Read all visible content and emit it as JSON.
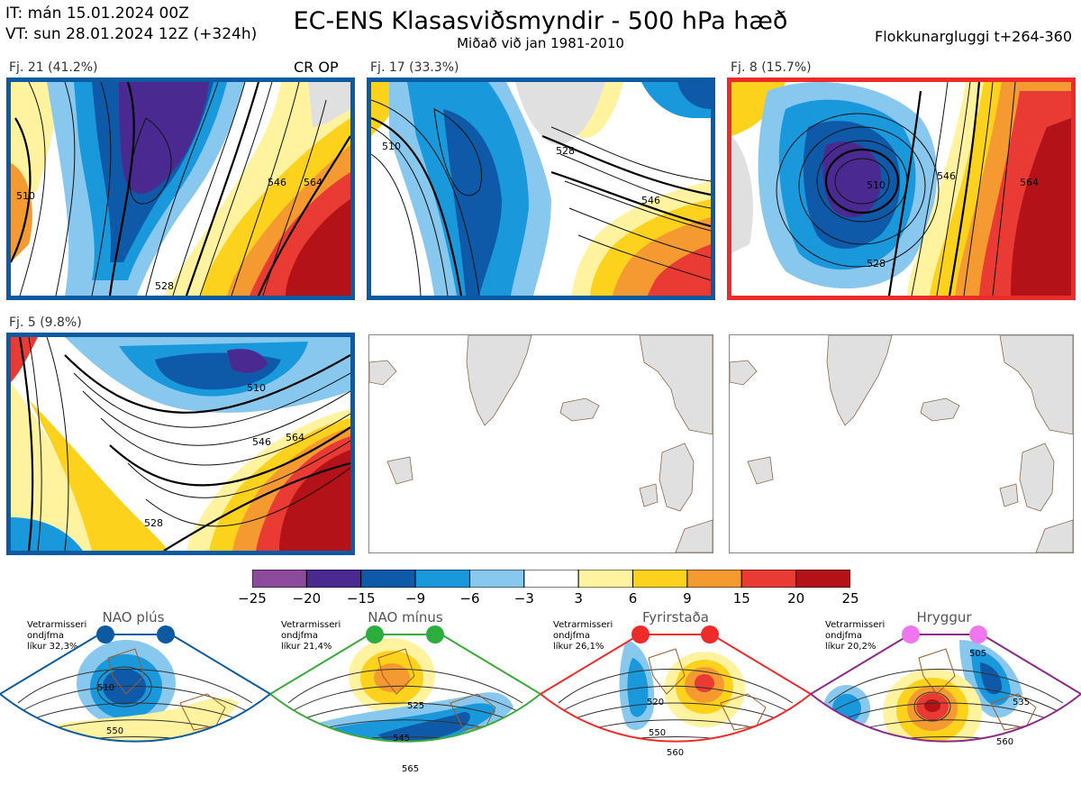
{
  "header": {
    "line1": "IT: mán 15.01.2024 00Z",
    "line2": "VT: sun 28.01.2024 12Z  (+324h)",
    "title": "EC-ENS Klasasviðsmyndir - 500 hPa hæð",
    "subtitle": "Miðað við jan 1981-2010",
    "right": "Flokkunargluggi t+264-360"
  },
  "panels": [
    {
      "label": "Fj. 21 (41.2%)",
      "tag": "CR OP",
      "border": "#0b5aa2",
      "contours": [
        "510",
        "528",
        "546",
        "564"
      ]
    },
    {
      "label": "Fj. 17 (33.3%)",
      "tag": "",
      "border": "#0b5aa2",
      "contours": [
        "510",
        "528",
        "546"
      ]
    },
    {
      "label": "Fj. 8 (15.7%)",
      "tag": "",
      "border": "#ee2b2b",
      "contours": [
        "510",
        "528",
        "546",
        "564"
      ]
    },
    {
      "label": "Fj. 5 (9.8%)",
      "tag": "",
      "border": "#0b5aa2",
      "contours": [
        "510",
        "528",
        "546",
        "564"
      ]
    }
  ],
  "colorbar": {
    "colors": [
      "#8b4a9c",
      "#4a2a90",
      "#0f5aa8",
      "#1a98dc",
      "#88c8ee",
      "#ffffff",
      "#fff3a0",
      "#fdd21c",
      "#f49a30",
      "#ea3a34",
      "#b31218"
    ],
    "labels": [
      "−25",
      "−20",
      "−15",
      "−9",
      "−6",
      "−3",
      "3",
      "6",
      "9",
      "15",
      "20",
      "25"
    ]
  },
  "regimes": [
    {
      "name": "NAO plús",
      "stat1": "Vetrarmisseri",
      "stat2": "ondjfma",
      "stat3": "líkur 32,3%",
      "color": "#0b5aa2",
      "dot": "#0b5aa2",
      "contours": [
        "510",
        "550"
      ]
    },
    {
      "name": "NAO mínus",
      "stat1": "Vetrarmisseri",
      "stat2": "ondjfma",
      "stat3": "líkur 21,4%",
      "color": "#3aaa3a",
      "dot": "#2cae3c",
      "contours": [
        "525",
        "545",
        "565"
      ]
    },
    {
      "name": "Fyrirstaða",
      "stat1": "Vetrarmisseri",
      "stat2": "ondjfma",
      "stat3": "líkur 26,1%",
      "color": "#ee2b2b",
      "dot": "#ee2b2b",
      "contours": [
        "520",
        "550",
        "560"
      ]
    },
    {
      "name": "Hryggur",
      "stat1": "Vetrarmisseri",
      "stat2": "ondjfma",
      "stat3": "líkur 20,2%",
      "color": "#8a2b8a",
      "dot": "#ee77ee",
      "contours": [
        "505",
        "535",
        "560"
      ]
    }
  ]
}
